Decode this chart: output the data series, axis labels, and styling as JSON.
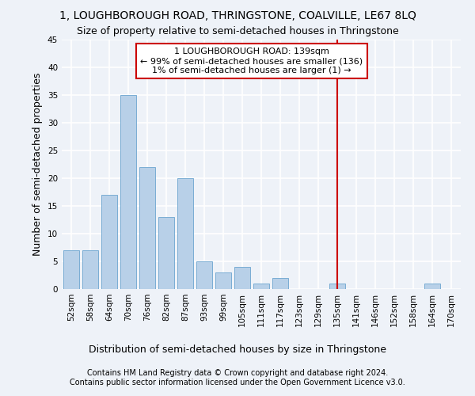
{
  "title": "1, LOUGHBOROUGH ROAD, THRINGSTONE, COALVILLE, LE67 8LQ",
  "subtitle": "Size of property relative to semi-detached houses in Thringstone",
  "xlabel": "Distribution of semi-detached houses by size in Thringstone",
  "ylabel": "Number of semi-detached properties",
  "categories": [
    "52sqm",
    "58sqm",
    "64sqm",
    "70sqm",
    "76sqm",
    "82sqm",
    "87sqm",
    "93sqm",
    "99sqm",
    "105sqm",
    "111sqm",
    "117sqm",
    "123sqm",
    "129sqm",
    "135sqm",
    "141sqm",
    "146sqm",
    "152sqm",
    "158sqm",
    "164sqm",
    "170sqm"
  ],
  "values": [
    7,
    7,
    17,
    35,
    22,
    13,
    20,
    5,
    3,
    4,
    1,
    2,
    0,
    0,
    1,
    0,
    0,
    0,
    0,
    1,
    0
  ],
  "bar_color": "#b8d0e8",
  "bar_edge_color": "#7aadd4",
  "vline_x_index": 14,
  "vline_color": "#cc0000",
  "annotation_text": "1 LOUGHBOROUGH ROAD: 139sqm\n← 99% of semi-detached houses are smaller (136)\n1% of semi-detached houses are larger (1) →",
  "annotation_box_color": "#ffffff",
  "annotation_box_edge": "#cc0000",
  "ylim": [
    0,
    45
  ],
  "yticks": [
    0,
    5,
    10,
    15,
    20,
    25,
    30,
    35,
    40,
    45
  ],
  "footer": "Contains HM Land Registry data © Crown copyright and database right 2024.\nContains public sector information licensed under the Open Government Licence v3.0.",
  "bg_color": "#eef2f8",
  "grid_color": "#ffffff",
  "title_fontsize": 10,
  "subtitle_fontsize": 9,
  "axis_label_fontsize": 9,
  "tick_fontsize": 7.5,
  "footer_fontsize": 7,
  "annotation_fontsize": 8
}
